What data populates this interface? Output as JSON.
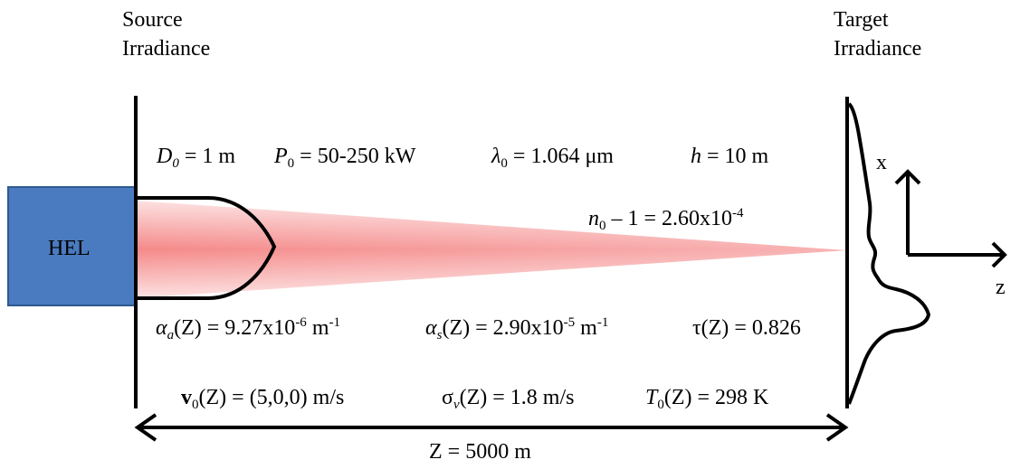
{
  "labels": {
    "source_line1": "Source",
    "source_line2": "Irradiance",
    "target_line1": "Target",
    "target_line2": "Irradiance",
    "laser": "HEL",
    "axis_x": "x",
    "axis_z": "z",
    "distance": "Z = 5000 m"
  },
  "parameters": {
    "aperture": {
      "sym": "D",
      "sub": "0",
      "rhs": "= 1 m"
    },
    "power": {
      "sym": "P",
      "sub": "0",
      "rhs": "= 50-250 kW"
    },
    "wavelength": {
      "sym": "λ",
      "sub": "0",
      "rhs": "= 1.064 μm"
    },
    "height": {
      "sym": "h",
      "rhs": "= 10 m"
    },
    "refractivity": {
      "sym": "n",
      "sub": "0",
      "mid": " – 1 = 2.60x10",
      "sup": "-4"
    },
    "absorption": {
      "sym": "α",
      "sub": "a",
      "arg": "(Z)",
      "mid": " = 9.27x10",
      "sup1": "-6",
      "unit": " m",
      "sup2": "-1"
    },
    "scattering": {
      "sym": "α",
      "sub": "s",
      "arg": "(Z)",
      "mid": " = 2.90x10",
      "sup1": "-5",
      "unit": " m",
      "sup2": "-1"
    },
    "transmittance": {
      "sym": "τ",
      "arg": "(Z)",
      "rhs": " = 0.826"
    },
    "wind": {
      "sym": "v",
      "sub": "0",
      "arg": "(Z)",
      "rhs": " = (5,0,0) m/s"
    },
    "wind_std": {
      "sym": "σ",
      "sub": "v",
      "arg": "(Z)",
      "rhs": " = 1.8 m/s"
    },
    "temperature": {
      "sym": "T",
      "sub": "0",
      "arg": "(Z)",
      "rhs": " = 298 K"
    }
  },
  "colors": {
    "laser_box": "#4a7abf",
    "laser_box_edge": "#2e5a8f",
    "beam": "#f27c7c"
  }
}
